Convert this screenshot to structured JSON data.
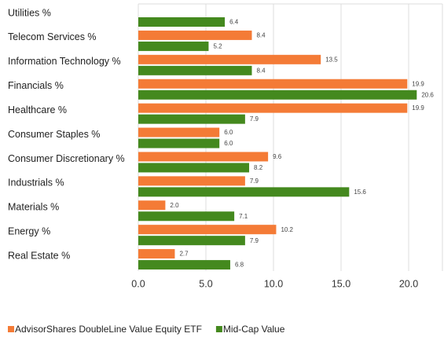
{
  "chart_data": {
    "type": "bar",
    "orientation": "horizontal",
    "categories": [
      "Utilities %",
      "Telecom Services %",
      "Information Technology %",
      "Financials %",
      "Healthcare %",
      "Consumer Staples %",
      "Consumer Discretionary %",
      "Industrials %",
      "Materials %",
      "Energy %",
      "Real Estate %"
    ],
    "series": [
      {
        "name": "AdvisorShares DoubleLine Value Equity ETF",
        "color": "#f47b36",
        "values": [
          null,
          8.4,
          13.5,
          19.9,
          19.9,
          6.0,
          9.6,
          7.9,
          2.0,
          10.2,
          2.7
        ],
        "value_labels": [
          null,
          "8.4",
          "13.5",
          "19.9",
          "19.9",
          "6.0",
          "9.6",
          "7.9",
          "2.0",
          "10.2",
          "2.7"
        ]
      },
      {
        "name": "Mid-Cap Value",
        "color": "#44891e",
        "values": [
          6.4,
          5.2,
          8.4,
          20.6,
          7.9,
          6.0,
          8.2,
          15.6,
          7.1,
          7.9,
          6.8
        ],
        "value_labels": [
          "6.4",
          "5.2",
          "8.4",
          "20.6",
          "7.9",
          "6.0",
          "8.2",
          "15.6",
          "7.1",
          "7.9",
          "6.8"
        ]
      }
    ],
    "xlim": [
      0,
      22.5
    ],
    "xticks": [
      {
        "value": 0,
        "label": "0.0"
      },
      {
        "value": 5,
        "label": "5.0"
      },
      {
        "value": 10,
        "label": "10.0"
      },
      {
        "value": 15,
        "label": "15.0"
      },
      {
        "value": 20,
        "label": "20.0"
      }
    ],
    "grid": true,
    "legend": "bottom-left"
  }
}
